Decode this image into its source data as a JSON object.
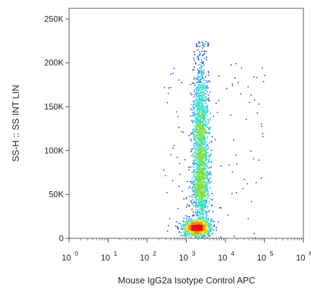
{
  "chart_data": {
    "type": "scatter",
    "title": "",
    "xlabel": "Mouse IgG2a Isotype Control APC",
    "ylabel": "SS-H :: SS INT LIN",
    "x_scale": "log",
    "xlim": [
      1,
      1000000
    ],
    "ylim": [
      0,
      262144
    ],
    "x_ticks": [
      {
        "base": "10",
        "exp": "0"
      },
      {
        "base": "10",
        "exp": "1"
      },
      {
        "base": "10",
        "exp": "2"
      },
      {
        "base": "10",
        "exp": "3"
      },
      {
        "base": "10",
        "exp": "4"
      },
      {
        "base": "10",
        "exp": "5"
      },
      {
        "base": "10",
        "exp": "6"
      }
    ],
    "y_ticks": [
      "0",
      "50K",
      "100K",
      "150K",
      "200K",
      "250K"
    ],
    "y_tick_values": [
      0,
      50000,
      100000,
      150000,
      200000,
      250000
    ],
    "grid": false,
    "legend": "none",
    "density_colors": [
      "#1a2fd6",
      "#1fa0ff",
      "#2fe0c8",
      "#7fe040",
      "#e8e820",
      "#ff8a10",
      "#e81010"
    ],
    "populations": [
      {
        "x_center": 1800,
        "y_center": 13000,
        "x_spread": 0.18,
        "y_spread": 4500,
        "count": 1100
      },
      {
        "x_center": 2300,
        "y_center": 120000,
        "x_spread": 0.1,
        "y_spread": 45000,
        "count": 1700
      },
      {
        "x_center": 2300,
        "y_center": 55000,
        "x_spread": 0.11,
        "y_spread": 20000,
        "count": 700
      }
    ]
  }
}
